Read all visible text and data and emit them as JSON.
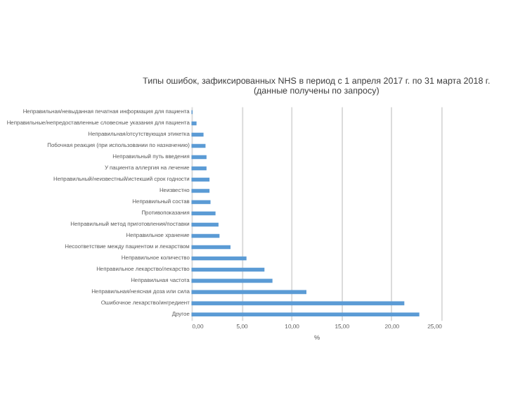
{
  "chart_data": {
    "type": "bar",
    "orientation": "horizontal",
    "title": "Типы ошибок, зафиксированных NHS в период с 1 апреля 2017 г. по 31 марта 2018 г.",
    "subtitle": "(данные получены по запросу)",
    "xlabel": "%",
    "categories": [
      "Неправильная/невыданная печатная информация для пациента",
      "Неправильные/непредоставленные словесные указания для пациента",
      "Неправильная/отсутствующая этикетка",
      "Побочная реакция (при использовании по назначению)",
      "Неправильный путь введения",
      "У пациента аллергия на лечение",
      "Неправильный/неизвестный/истекший срок годности",
      "Неизвестно",
      "Неправильный состав",
      "Противопоказания",
      "Неправильный метод приготовления/поставки",
      "Неправильное хранение",
      "Несоответствие между пациентом и лекарством",
      "Неправильное количество",
      "Неправильное лекарство/лекарство",
      "Неправильная частота",
      "Неправильная/неясная доза или сила",
      "Ошибочное лекарство/ингредиент",
      "Другое"
    ],
    "values": [
      0.1,
      0.5,
      1.2,
      1.4,
      1.5,
      1.5,
      1.8,
      1.8,
      1.9,
      2.4,
      2.7,
      2.8,
      3.9,
      5.5,
      7.3,
      8.1,
      11.5,
      21.3,
      22.8
    ],
    "color": "#5b9bd5",
    "xlim": [
      0,
      25
    ],
    "xticks": [
      {
        "value": 0,
        "label": "0,00"
      },
      {
        "value": 5,
        "label": "5,00"
      },
      {
        "value": 10,
        "label": "10,00"
      },
      {
        "value": 15,
        "label": "15,00"
      },
      {
        "value": 20,
        "label": "20,00"
      },
      {
        "value": 25,
        "label": "25,00"
      }
    ],
    "grid": "x"
  }
}
